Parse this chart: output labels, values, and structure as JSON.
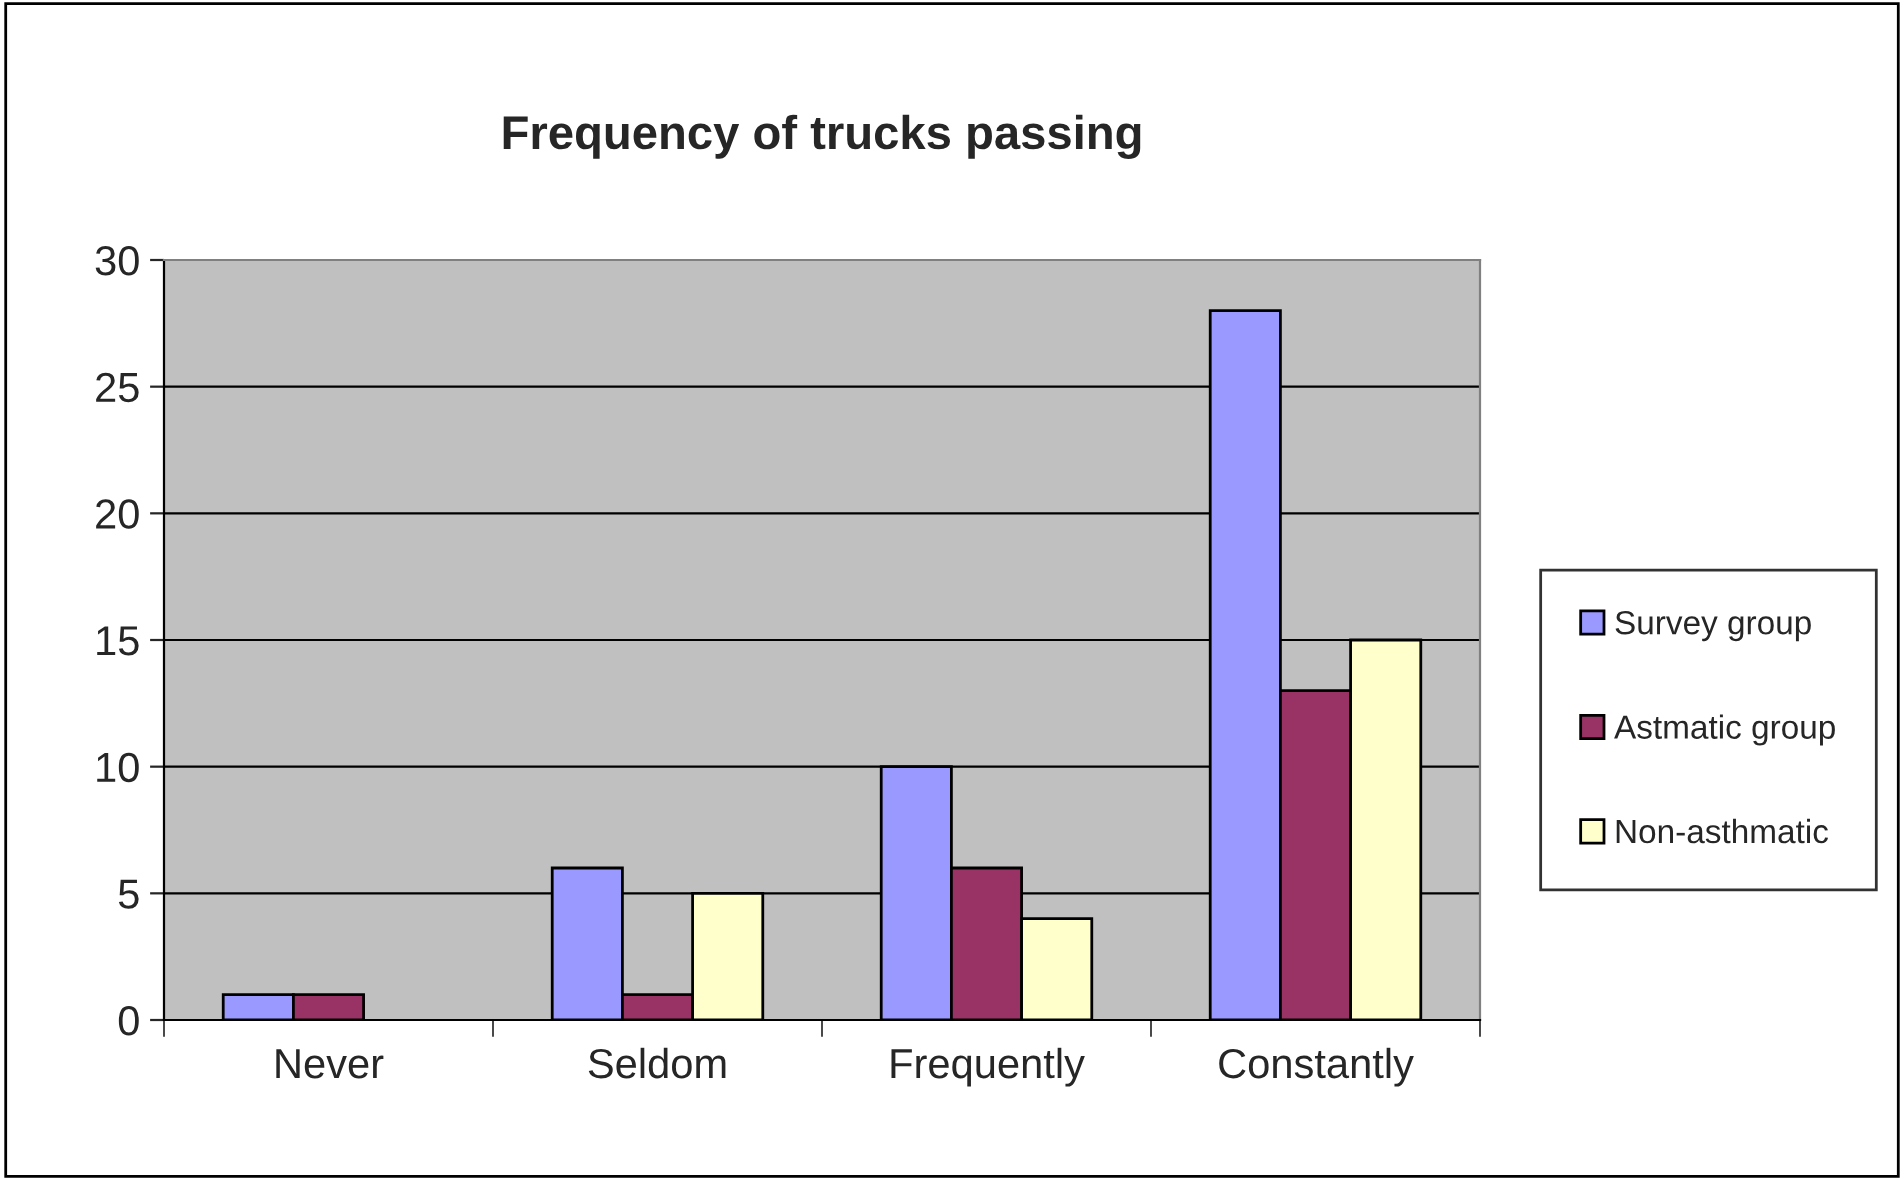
{
  "chart_data": {
    "type": "bar",
    "title": "Frequency of trucks passing",
    "categories": [
      "Never",
      "Seldom",
      "Frequently",
      "Constantly"
    ],
    "series": [
      {
        "name": "Survey group",
        "color": "#9999ff",
        "values": [
          1,
          6,
          10,
          28
        ]
      },
      {
        "name": "Astmatic group",
        "color": "#993366",
        "values": [
          1,
          1,
          6,
          13
        ]
      },
      {
        "name": "Non-asthmatic",
        "color": "#ffffcc",
        "values": [
          null,
          5,
          4,
          15
        ]
      }
    ],
    "ylim": [
      0,
      30
    ],
    "yticks": [
      0,
      5,
      10,
      15,
      20,
      25,
      30
    ],
    "grid": "y",
    "legend": "right"
  }
}
